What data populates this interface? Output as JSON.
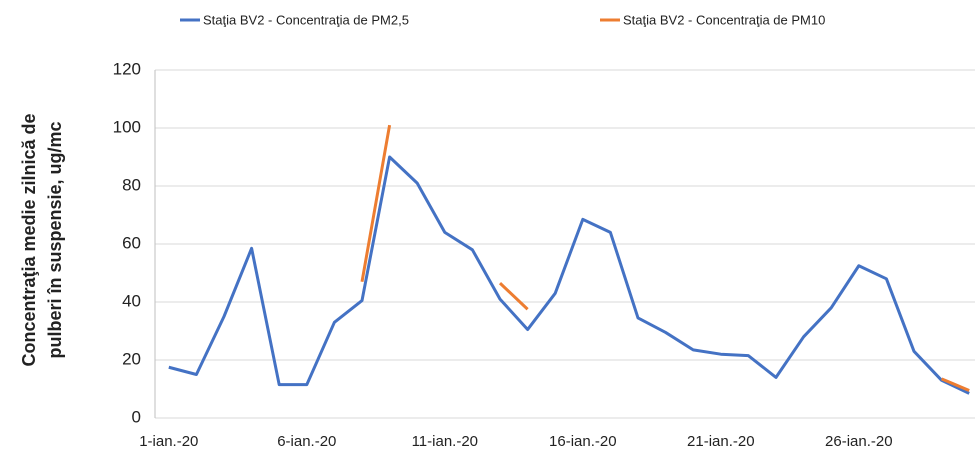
{
  "chart_data": {
    "type": "line",
    "y_label_lines": [
      "Concentraţia medie zilnică de",
      "pulberi în suspensie, ug/mc"
    ],
    "categories": [
      "1-ian.-20",
      null,
      null,
      null,
      null,
      "6-ian.-20",
      null,
      null,
      null,
      null,
      "11-ian.-20",
      null,
      null,
      null,
      null,
      "16-ian.-20",
      null,
      null,
      null,
      null,
      "21-ian.-20",
      null,
      null,
      null,
      null,
      "26-ian.-20",
      null,
      null,
      null,
      null
    ],
    "series": [
      {
        "name": "Staţia BV2 - Concentraţia de PM2,5",
        "color": "#4472c4",
        "values": [
          17.5,
          15,
          35,
          58.5,
          11.5,
          11.5,
          33,
          40.5,
          90,
          81,
          64,
          58,
          41,
          30.5,
          43,
          68.5,
          64,
          34.5,
          29.5,
          23.5,
          22,
          21.5,
          14,
          28,
          38,
          52.5,
          48,
          23,
          13,
          8.5
        ]
      },
      {
        "name": "Staţia BV2 - Concentraţia de PM10",
        "color": "#ed7d31",
        "values": [
          null,
          null,
          null,
          null,
          null,
          null,
          null,
          47,
          101,
          null,
          null,
          null,
          46.5,
          37.5,
          null,
          null,
          null,
          null,
          null,
          null,
          null,
          null,
          null,
          null,
          null,
          null,
          null,
          null,
          13.5,
          9.5
        ]
      }
    ],
    "ylim": [
      0,
      120
    ],
    "yticks": [
      0,
      20,
      40,
      60,
      80,
      100,
      120
    ],
    "grid": true,
    "legend": "top"
  }
}
